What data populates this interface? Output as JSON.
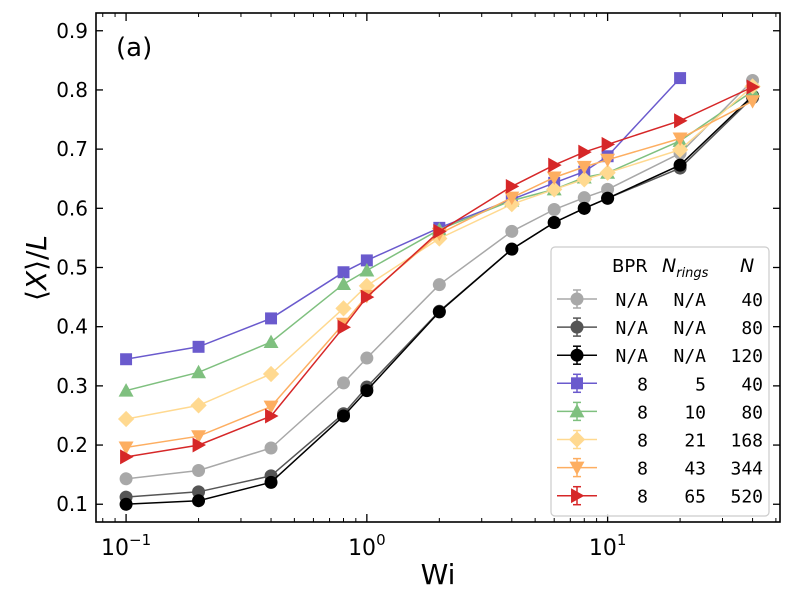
{
  "chart_data": {
    "type": "line",
    "x_scale": "log",
    "panel_label": "(a)",
    "xlabel": "Wi",
    "ylabel_prefix": "⟨",
    "ylabel_var": "X",
    "ylabel_mid": "⟩/",
    "ylabel_len": "L",
    "xlim": [
      0.075,
      52
    ],
    "ylim": [
      0.07,
      0.93
    ],
    "x_ticks": [
      {
        "value": 0.1,
        "base": "10",
        "exp": "−1"
      },
      {
        "value": 1,
        "base": "10",
        "exp": "0"
      },
      {
        "value": 10,
        "base": "10",
        "exp": "1"
      }
    ],
    "y_ticks": [
      "0.1",
      "0.2",
      "0.3",
      "0.4",
      "0.5",
      "0.6",
      "0.7",
      "0.8",
      "0.9"
    ],
    "legend": {
      "placement": "lower-right",
      "headers": {
        "bpr": "BPR",
        "nrings_base": "N",
        "nrings_sub": "rings",
        "n": "N"
      }
    },
    "series": [
      {
        "bpr": "N/A",
        "nrings": "N/A",
        "n": "40",
        "color": "#a8a8a8",
        "marker": "circle",
        "x": [
          0.1,
          0.2,
          0.4,
          0.8,
          1,
          2,
          4,
          6,
          8,
          10,
          20,
          40
        ],
        "y": [
          0.143,
          0.157,
          0.195,
          0.305,
          0.347,
          0.471,
          0.561,
          0.598,
          0.618,
          0.632,
          0.693,
          0.816
        ]
      },
      {
        "bpr": "N/A",
        "nrings": "N/A",
        "n": "80",
        "color": "#555555",
        "marker": "circle",
        "x": [
          0.1,
          0.2,
          0.4,
          0.8,
          1,
          2,
          4,
          6,
          8,
          10,
          20,
          40
        ],
        "y": [
          0.112,
          0.121,
          0.148,
          0.253,
          0.298,
          0.426,
          0.531,
          0.576,
          0.6,
          0.617,
          0.668,
          0.787
        ]
      },
      {
        "bpr": "N/A",
        "nrings": "N/A",
        "n": "120",
        "color": "#000000",
        "marker": "circle",
        "x": [
          0.1,
          0.2,
          0.4,
          0.8,
          1,
          2,
          4,
          6,
          8,
          10,
          20,
          40
        ],
        "y": [
          0.1,
          0.106,
          0.137,
          0.249,
          0.292,
          0.425,
          0.531,
          0.576,
          0.6,
          0.617,
          0.673,
          0.79
        ]
      },
      {
        "bpr": "8",
        "nrings": "5",
        "n": "40",
        "color": "#6a5acd",
        "marker": "square",
        "x": [
          0.1,
          0.2,
          0.4,
          0.8,
          1,
          2,
          4,
          6,
          8,
          10,
          20
        ],
        "y": [
          0.345,
          0.366,
          0.414,
          0.492,
          0.512,
          0.567,
          0.615,
          0.643,
          0.662,
          0.688,
          0.82
        ]
      },
      {
        "bpr": "8",
        "nrings": "10",
        "n": "80",
        "color": "#7fc07f",
        "marker": "triangle-up",
        "x": [
          0.1,
          0.2,
          0.4,
          0.8,
          1,
          2,
          4,
          6,
          8,
          10,
          20,
          40
        ],
        "y": [
          0.292,
          0.323,
          0.374,
          0.472,
          0.495,
          0.564,
          0.613,
          0.632,
          0.652,
          0.66,
          0.714,
          0.798
        ]
      },
      {
        "bpr": "8",
        "nrings": "21",
        "n": "168",
        "color": "#ffd990",
        "marker": "diamond",
        "x": [
          0.1,
          0.2,
          0.4,
          0.8,
          1,
          2,
          4,
          6,
          8,
          10,
          20,
          40
        ],
        "y": [
          0.244,
          0.267,
          0.32,
          0.431,
          0.469,
          0.549,
          0.607,
          0.632,
          0.649,
          0.66,
          0.699,
          0.806
        ]
      },
      {
        "bpr": "8",
        "nrings": "43",
        "n": "344",
        "color": "#fdae61",
        "marker": "triangle-down",
        "x": [
          0.1,
          0.2,
          0.4,
          0.8,
          1,
          2,
          4,
          6,
          8,
          10,
          20,
          40
        ],
        "y": [
          0.196,
          0.215,
          0.265,
          0.405,
          0.452,
          0.557,
          0.618,
          0.652,
          0.67,
          0.682,
          0.718,
          0.781
        ]
      },
      {
        "bpr": "8",
        "nrings": "65",
        "n": "520",
        "color": "#d62728",
        "marker": "triangle-right",
        "x": [
          0.1,
          0.2,
          0.4,
          0.8,
          1,
          2,
          4,
          6,
          8,
          10,
          20,
          40
        ],
        "y": [
          0.18,
          0.2,
          0.249,
          0.399,
          0.45,
          0.561,
          0.637,
          0.673,
          0.695,
          0.708,
          0.748,
          0.805
        ]
      }
    ]
  }
}
